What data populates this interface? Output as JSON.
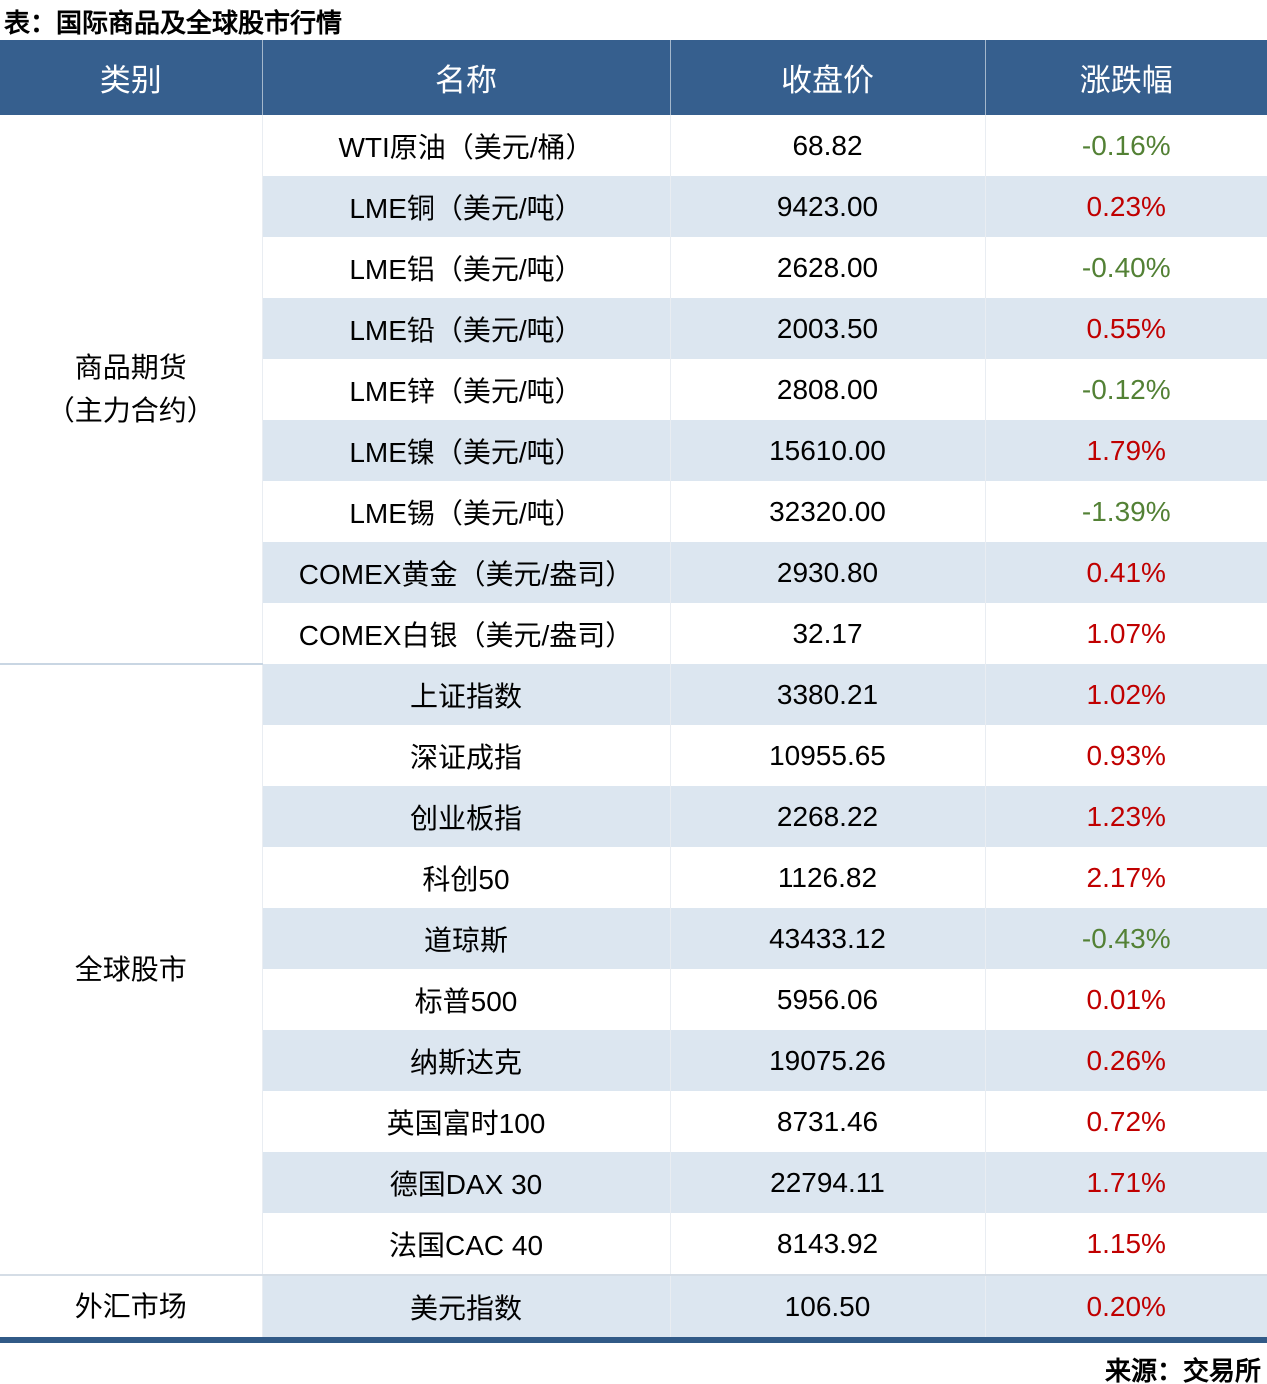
{
  "title": "表：国际商品及全球股市行情",
  "source": "来源：交易所",
  "colors": {
    "header_bg": "#365F8E",
    "stripe_bg": "#DCE6F0",
    "up_red": "#C00000",
    "down_green": "#538135",
    "bottom_border": "#315A87"
  },
  "table": {
    "headers": {
      "category": "类别",
      "name": "名称",
      "close": "收盘价",
      "change": "涨跌幅"
    },
    "categories": {
      "futures_line1": "商品期货",
      "futures_line2": "（主力合约）",
      "stocks": "全球股市",
      "fx": "外汇市场"
    },
    "rows": [
      {
        "name": "WTI原油（美元/桶）",
        "close": "68.82",
        "change": "-0.16%"
      },
      {
        "name": "LME铜（美元/吨）",
        "close": "9423.00",
        "change": "0.23%"
      },
      {
        "name": "LME铝（美元/吨）",
        "close": "2628.00",
        "change": "-0.40%"
      },
      {
        "name": "LME铅（美元/吨）",
        "close": "2003.50",
        "change": "0.55%"
      },
      {
        "name": "LME锌（美元/吨）",
        "close": "2808.00",
        "change": "-0.12%"
      },
      {
        "name": "LME镍（美元/吨）",
        "close": "15610.00",
        "change": "1.79%"
      },
      {
        "name": "LME锡（美元/吨）",
        "close": "32320.00",
        "change": "-1.39%"
      },
      {
        "name": "COMEX黄金（美元/盎司）",
        "close": "2930.80",
        "change": "0.41%"
      },
      {
        "name": "COMEX白银（美元/盎司）",
        "close": "32.17",
        "change": "1.07%"
      },
      {
        "name": "上证指数",
        "close": "3380.21",
        "change": "1.02%"
      },
      {
        "name": "深证成指",
        "close": "10955.65",
        "change": "0.93%"
      },
      {
        "name": "创业板指",
        "close": "2268.22",
        "change": "1.23%"
      },
      {
        "name": "科创50",
        "close": "1126.82",
        "change": "2.17%"
      },
      {
        "name": "道琼斯",
        "close": "43433.12",
        "change": "-0.43%"
      },
      {
        "name": "标普500",
        "close": "5956.06",
        "change": "0.01%"
      },
      {
        "name": "纳斯达克",
        "close": "19075.26",
        "change": "0.26%"
      },
      {
        "name": "英国富时100",
        "close": "8731.46",
        "change": "0.72%"
      },
      {
        "name": "德国DAX 30",
        "close": "22794.11",
        "change": "1.71%"
      },
      {
        "name": "法国CAC 40",
        "close": "8143.92",
        "change": "1.15%"
      },
      {
        "name": "美元指数",
        "close": "106.50",
        "change": "0.20%"
      }
    ]
  },
  "chart_data": {
    "type": "table",
    "title": "表：国际商品及全球股市行情",
    "columns": [
      "类别",
      "名称",
      "收盘价",
      "涨跌幅"
    ],
    "groups": [
      {
        "category": "商品期货（主力合约）",
        "rows": [
          [
            "WTI原油（美元/桶）",
            68.82,
            "-0.16%"
          ],
          [
            "LME铜（美元/吨）",
            9423.0,
            "0.23%"
          ],
          [
            "LME铝（美元/吨）",
            2628.0,
            "-0.40%"
          ],
          [
            "LME铅（美元/吨）",
            2003.5,
            "0.55%"
          ],
          [
            "LME锌（美元/吨）",
            2808.0,
            "-0.12%"
          ],
          [
            "LME镍（美元/吨）",
            15610.0,
            "1.79%"
          ],
          [
            "LME锡（美元/吨）",
            32320.0,
            "-1.39%"
          ],
          [
            "COMEX黄金（美元/盎司）",
            2930.8,
            "0.41%"
          ],
          [
            "COMEX白银（美元/盎司）",
            32.17,
            "1.07%"
          ]
        ]
      },
      {
        "category": "全球股市",
        "rows": [
          [
            "上证指数",
            3380.21,
            "1.02%"
          ],
          [
            "深证成指",
            10955.65,
            "0.93%"
          ],
          [
            "创业板指",
            2268.22,
            "1.23%"
          ],
          [
            "科创50",
            1126.82,
            "2.17%"
          ],
          [
            "道琼斯",
            43433.12,
            "-0.43%"
          ],
          [
            "标普500",
            5956.06,
            "0.01%"
          ],
          [
            "纳斯达克",
            19075.26,
            "0.26%"
          ],
          [
            "英国富时100",
            8731.46,
            "0.72%"
          ],
          [
            "德国DAX 30",
            22794.11,
            "1.71%"
          ],
          [
            "法国CAC 40",
            8143.92,
            "1.15%"
          ]
        ]
      },
      {
        "category": "外汇市场",
        "rows": [
          [
            "美元指数",
            106.5,
            "0.20%"
          ]
        ]
      }
    ],
    "color_convention": {
      "positive": "red",
      "negative": "green"
    },
    "source": "来源：交易所"
  }
}
